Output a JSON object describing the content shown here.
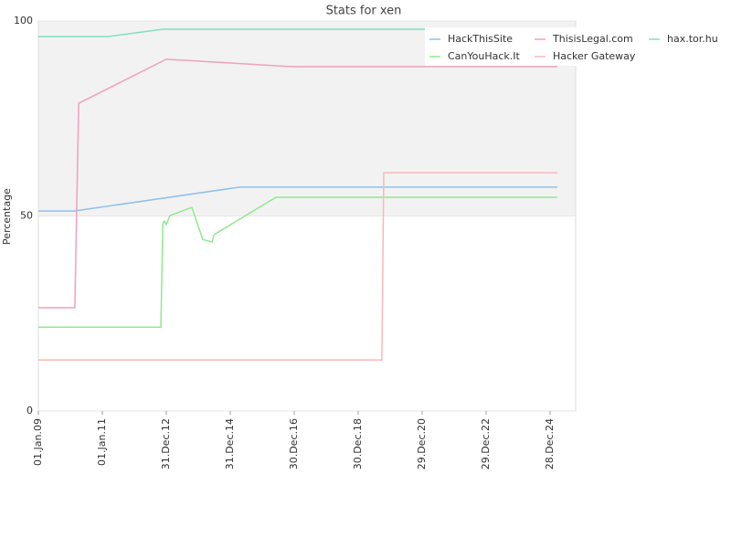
{
  "chart_data": {
    "type": "line",
    "title": "Stats for xen",
    "y_label": "Percentage",
    "xlim": [
      2009,
      2025.8
    ],
    "ylim": [
      0,
      100
    ],
    "xticks": [
      {
        "value": 2009,
        "label": "01.Jan.09"
      },
      {
        "value": 2011,
        "label": "01.Jan.11"
      },
      {
        "value": 2013,
        "label": "31.Dec.12"
      },
      {
        "value": 2015,
        "label": "31.Dec.14"
      },
      {
        "value": 2017,
        "label": "30.Dec.16"
      },
      {
        "value": 2019,
        "label": "30.Dec.18"
      },
      {
        "value": 2021,
        "label": "29.Dec.20"
      },
      {
        "value": 2023,
        "label": "29.Dec.22"
      },
      {
        "value": 2025,
        "label": "28.Dec.24"
      }
    ],
    "yticks": [
      0,
      50,
      100
    ],
    "legend": "upper right",
    "series": [
      {
        "name": "HackThisSite",
        "color": "#90c0e8",
        "x": [
          2009,
          2010.14,
          2015.29,
          2025.23
        ],
        "values": [
          51.3,
          51.3,
          57.4,
          57.4
        ]
      },
      {
        "name": "ThisisLegal.com",
        "color": "#f0a0c0",
        "x": [
          2009,
          2010.14,
          2010.26,
          2013,
          2016.94,
          2025.23
        ],
        "values": [
          26.5,
          26.5,
          78.9,
          90.2,
          88.3,
          88.3
        ]
      },
      {
        "name": "hax.tor.hu",
        "color": "#80e0c0",
        "x": [
          2009,
          2011.17,
          2012.89,
          2025.23
        ],
        "values": [
          96.0,
          96.0,
          97.9,
          97.9
        ]
      },
      {
        "name": "CanYouHack.It",
        "color": "#90e890",
        "x": [
          2009,
          2012.83,
          2012.89,
          2012.94,
          2013.0,
          2013.11,
          2013.8,
          2014.14,
          2014.43,
          2014.49,
          2016.43,
          2025.23
        ],
        "values": [
          21.5,
          21.5,
          48.0,
          48.7,
          47.8,
          50.1,
          52.2,
          44.0,
          43.3,
          45.2,
          54.8,
          54.8
        ]
      },
      {
        "name": "Hacker Gateway",
        "color": "#f8b8b8",
        "x": [
          2009,
          2019.74,
          2019.8,
          2025.23
        ],
        "values": [
          13.1,
          13.1,
          61.1,
          61.1
        ]
      }
    ]
  }
}
